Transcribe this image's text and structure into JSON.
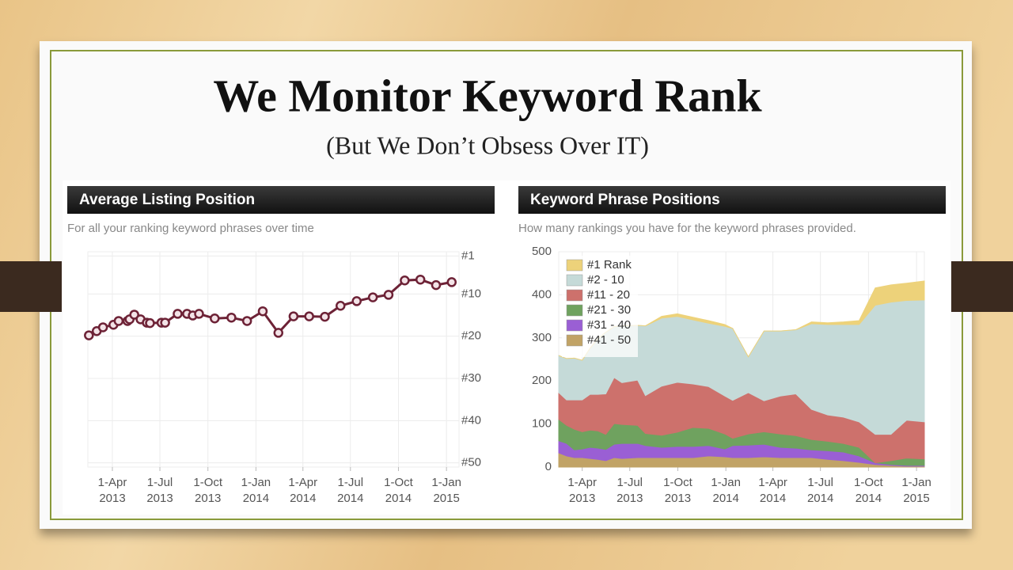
{
  "slide": {
    "title": "We Monitor Keyword Rank",
    "subtitle": "(But We Don’t Obsess Over IT)"
  },
  "chart_data": [
    {
      "type": "line",
      "title": "Average Listing Position",
      "subtitle": "For all your ranking keyword phrases over time",
      "x": [
        "2013-02-15",
        "2013-03-02",
        "2013-03-14",
        "2013-04-03",
        "2013-04-13",
        "2013-04-30",
        "2013-05-04",
        "2013-05-13",
        "2013-05-25",
        "2013-06-06",
        "2013-06-12",
        "2013-07-04",
        "2013-07-11",
        "2013-08-04",
        "2013-08-22",
        "2013-09-02",
        "2013-09-14",
        "2013-10-14",
        "2013-11-15",
        "2013-12-15",
        "2014-01-14",
        "2014-02-13",
        "2014-03-14",
        "2014-04-13",
        "2014-05-13",
        "2014-06-12",
        "2014-07-13",
        "2014-08-13",
        "2014-09-12",
        "2014-10-13",
        "2014-11-12",
        "2014-12-12",
        "2015-01-11"
      ],
      "values": [
        19.8,
        18.8,
        17.9,
        17.3,
        16.4,
        16.4,
        16.0,
        14.9,
        16.0,
        16.8,
        16.9,
        16.8,
        16.8,
        14.7,
        14.7,
        15.1,
        14.7,
        15.8,
        15.6,
        16.4,
        14.1,
        19.2,
        15.3,
        15.3,
        15.4,
        12.8,
        11.7,
        10.8,
        10.2,
        6.8,
        6.6,
        7.9,
        7.2
      ],
      "color": "#6d2236",
      "xlim": [
        "2013-02-13",
        "2015-01-25"
      ],
      "xticks": [
        {
          "value": "2013-04-01",
          "label": "1-Apr 2013"
        },
        {
          "value": "2013-07-01",
          "label": "1-Jul 2013"
        },
        {
          "value": "2013-10-01",
          "label": "1-Oct 2013"
        },
        {
          "value": "2014-01-01",
          "label": "1-Jan 2014"
        },
        {
          "value": "2014-04-01",
          "label": "1-Apr 2014"
        },
        {
          "value": "2014-07-01",
          "label": "1-Jul 2014"
        },
        {
          "value": "2014-10-01",
          "label": "1-Oct 2014"
        },
        {
          "value": "2015-01-01",
          "label": "1-Jan 2015"
        }
      ],
      "ylim": [
        0,
        51
      ],
      "y_inverted": true,
      "y_axis_side": "right",
      "yticks": [
        {
          "value": 1,
          "label": "#1"
        },
        {
          "value": 10,
          "label": "#10"
        },
        {
          "value": 20,
          "label": "#20"
        },
        {
          "value": 30,
          "label": "#30"
        },
        {
          "value": 40,
          "label": "#40"
        },
        {
          "value": 50,
          "label": "#50"
        }
      ],
      "grid": true
    },
    {
      "type": "stacked_area",
      "title": "Keyword Phrase Positions",
      "subtitle": "How many rankings you have for the keyword phrases provided.",
      "x": [
        "2013-02-15",
        "2013-03-02",
        "2013-03-17",
        "2013-04-01",
        "2013-04-16",
        "2013-05-01",
        "2013-05-16",
        "2013-06-01",
        "2013-06-16",
        "2013-07-16",
        "2013-07-31",
        "2013-08-31",
        "2013-09-30",
        "2013-10-30",
        "2013-11-29",
        "2013-12-30",
        "2014-01-14",
        "2014-02-13",
        "2014-03-15",
        "2014-04-15",
        "2014-05-15",
        "2014-06-14",
        "2014-07-15",
        "2014-08-14",
        "2014-09-13",
        "2014-10-14",
        "2014-11-13",
        "2014-12-13",
        "2015-01-16"
      ],
      "series": [
        {
          "name": "#1 Rank",
          "color": "#edd27a",
          "values": [
            0,
            0,
            0,
            0,
            0,
            0,
            0,
            0,
            0,
            0,
            0,
            4,
            6,
            6,
            6,
            4,
            0,
            0,
            0,
            0,
            0,
            4,
            4,
            6,
            9,
            40,
            40,
            40,
            44
          ]
        },
        {
          "name": "#2 - 10",
          "color": "#c5dad8",
          "values": [
            86,
            96,
            97,
            92,
            107,
            129,
            143,
            118,
            132,
            127,
            162,
            158,
            153,
            149,
            147,
            162,
            167,
            83,
            162,
            151,
            149,
            199,
            210,
            215,
            226,
            300,
            307,
            278,
            283
          ]
        },
        {
          "name": "#11 - 20",
          "color": "#cd716c",
          "values": [
            62,
            59,
            68,
            74,
            83,
            85,
            94,
            107,
            97,
            105,
            88,
            114,
            116,
            101,
            97,
            88,
            88,
            96,
            72,
            88,
            97,
            70,
            61,
            61,
            59,
            66,
            61,
            88,
            86
          ]
        },
        {
          "name": "#21 - 30",
          "color": "#6fa25f",
          "values": [
            50,
            42,
            48,
            40,
            40,
            40,
            35,
            48,
            44,
            42,
            28,
            28,
            33,
            44,
            40,
            35,
            17,
            26,
            29,
            31,
            29,
            24,
            22,
            20,
            20,
            0,
            9,
            17,
            15
          ]
        },
        {
          "name": "#31 - 40",
          "color": "#9a5fd4",
          "values": [
            28,
            29,
            18,
            20,
            26,
            26,
            26,
            31,
            35,
            33,
            28,
            24,
            26,
            26,
            24,
            18,
            28,
            29,
            29,
            24,
            22,
            18,
            20,
            20,
            15,
            4,
            2,
            2,
            2
          ]
        },
        {
          "name": "#41 - 50",
          "color": "#c1a366",
          "values": [
            33,
            26,
            22,
            22,
            20,
            18,
            15,
            22,
            20,
            22,
            22,
            22,
            22,
            22,
            26,
            24,
            22,
            22,
            24,
            22,
            22,
            22,
            18,
            15,
            11,
            6,
            4,
            2,
            2
          ]
        }
      ],
      "xlim": [
        "2013-02-15",
        "2015-01-16"
      ],
      "xticks": [
        {
          "value": "2013-04-01",
          "label": "1-Apr 2013"
        },
        {
          "value": "2013-07-01",
          "label": "1-Jul 2013"
        },
        {
          "value": "2013-10-01",
          "label": "1-Oct 2013"
        },
        {
          "value": "2014-01-01",
          "label": "1-Jan 2014"
        },
        {
          "value": "2014-04-01",
          "label": "1-Apr 2014"
        },
        {
          "value": "2014-07-01",
          "label": "1-Jul 2014"
        },
        {
          "value": "2014-10-01",
          "label": "1-Oct 2014"
        },
        {
          "value": "2015-01-01",
          "label": "1-Jan 2015"
        }
      ],
      "ylim": [
        0,
        500
      ],
      "yticks": [
        0,
        100,
        200,
        300,
        400,
        500
      ],
      "legend": "upper left",
      "grid": true
    }
  ]
}
